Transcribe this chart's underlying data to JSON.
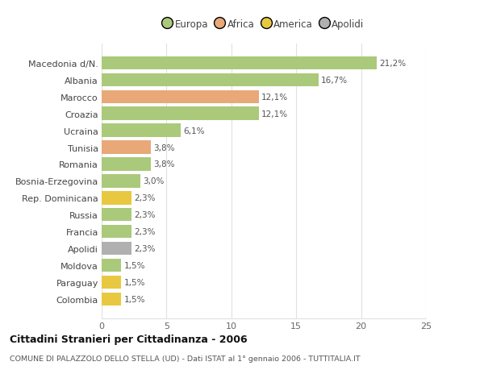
{
  "categories": [
    "Macedonia d/N.",
    "Albania",
    "Marocco",
    "Croazia",
    "Ucraina",
    "Tunisia",
    "Romania",
    "Bosnia-Erzegovina",
    "Rep. Dominicana",
    "Russia",
    "Francia",
    "Apolidi",
    "Moldova",
    "Paraguay",
    "Colombia"
  ],
  "values": [
    21.2,
    16.7,
    12.1,
    12.1,
    6.1,
    3.8,
    3.8,
    3.0,
    2.3,
    2.3,
    2.3,
    2.3,
    1.5,
    1.5,
    1.5
  ],
  "labels": [
    "21,2%",
    "16,7%",
    "12,1%",
    "12,1%",
    "6,1%",
    "3,8%",
    "3,8%",
    "3,0%",
    "2,3%",
    "2,3%",
    "2,3%",
    "2,3%",
    "1,5%",
    "1,5%",
    "1,5%"
  ],
  "bar_colors": [
    "#aac97a",
    "#aac97a",
    "#e8a878",
    "#aac97a",
    "#aac97a",
    "#e8a878",
    "#aac97a",
    "#aac97a",
    "#e8c840",
    "#aac97a",
    "#aac97a",
    "#b0b0b0",
    "#aac97a",
    "#e8c840",
    "#e8c840"
  ],
  "legend_labels": [
    "Europa",
    "Africa",
    "America",
    "Apolidi"
  ],
  "legend_colors": [
    "#aac97a",
    "#e8a878",
    "#e8c840",
    "#b0b0b0"
  ],
  "xlim": [
    0,
    25
  ],
  "xticks": [
    0,
    5,
    10,
    15,
    20,
    25
  ],
  "title": "Cittadini Stranieri per Cittadinanza - 2006",
  "subtitle": "COMUNE DI PALAZZOLO DELLO STELLA (UD) - Dati ISTAT al 1° gennaio 2006 - TUTTITALIA.IT",
  "background_color": "#ffffff",
  "grid_color": "#e0e0e0"
}
